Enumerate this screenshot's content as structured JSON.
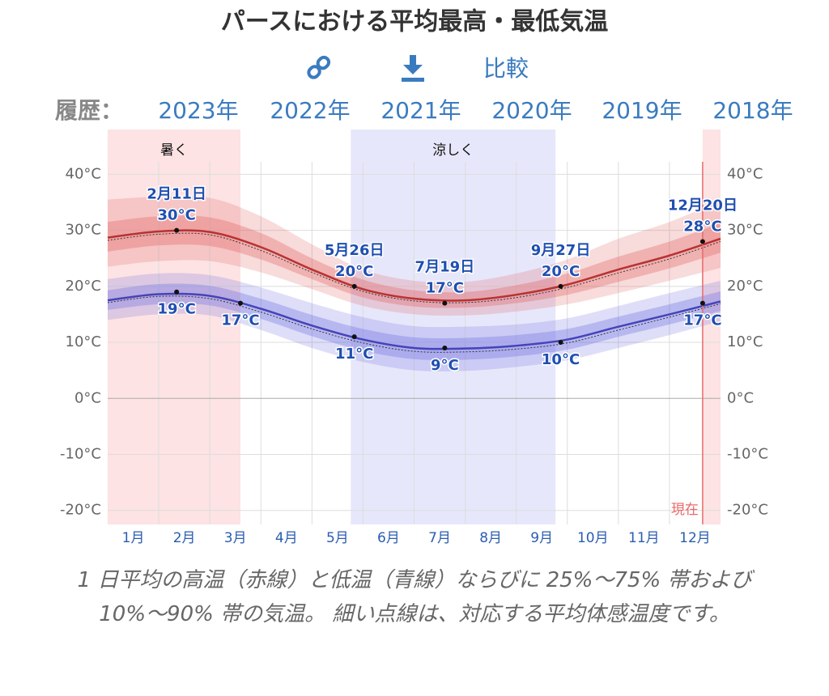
{
  "header": {
    "title": "パースにおける平均最高・最低気温",
    "compare": "比較",
    "history_label": "履歴：",
    "years": [
      "2023年",
      "2022年",
      "2021年",
      "2020年",
      "2019年",
      "2018年"
    ]
  },
  "chart_data": {
    "type": "line",
    "x": [
      0,
      1,
      2,
      3,
      4,
      5,
      6,
      7,
      8,
      9,
      10,
      11,
      12
    ],
    "xlim": [
      0,
      12
    ],
    "xticks": [
      {
        "value": 0.5,
        "label": "1月"
      },
      {
        "value": 1.5,
        "label": "2月"
      },
      {
        "value": 2.5,
        "label": "3月"
      },
      {
        "value": 3.5,
        "label": "4月"
      },
      {
        "value": 4.5,
        "label": "5月"
      },
      {
        "value": 5.5,
        "label": "6月"
      },
      {
        "value": 6.5,
        "label": "7月"
      },
      {
        "value": 7.5,
        "label": "8月"
      },
      {
        "value": 8.5,
        "label": "9月"
      },
      {
        "value": 9.5,
        "label": "10月"
      },
      {
        "value": 10.5,
        "label": "11月"
      },
      {
        "value": 11.5,
        "label": "12月"
      }
    ],
    "xgrid": [
      1,
      2,
      3,
      4,
      5,
      6,
      7,
      8,
      9,
      10,
      11
    ],
    "ylim": [
      -22.5,
      48
    ],
    "yticks": [
      {
        "value": -20,
        "label": "-20°C"
      },
      {
        "value": -10,
        "label": "-10°C"
      },
      {
        "value": 0,
        "label": "0°C"
      },
      {
        "value": 10,
        "label": "10°C"
      },
      {
        "value": 20,
        "label": "20°C"
      },
      {
        "value": 30,
        "label": "30°C"
      },
      {
        "value": 40,
        "label": "40°C"
      }
    ],
    "grid": true,
    "series": [
      {
        "color": "#b83232",
        "band_color": "#e05a5a",
        "values": [
          28.7,
          29.8,
          29.7,
          27,
          23,
          19.5,
          17.8,
          17.5,
          18.5,
          20.3,
          23,
          25.5,
          28.5
        ],
        "apparent": [
          28.2,
          29.3,
          29.2,
          26.4,
          22.5,
          19.1,
          17.4,
          17.1,
          18.0,
          19.8,
          22.4,
          24.9,
          28.0
        ],
        "p10": [
          23.5,
          24.5,
          24.5,
          22.5,
          19.5,
          16.5,
          15,
          14.8,
          15.5,
          16.8,
          18.8,
          21,
          23.3
        ],
        "p25": [
          26.2,
          27.3,
          27.2,
          24.8,
          21.3,
          18,
          16.4,
          16.2,
          17,
          18.5,
          20.8,
          23.2,
          26
        ],
        "p75": [
          31.5,
          32.5,
          32.3,
          29.5,
          25,
          21.2,
          19.3,
          19,
          20.2,
          22.3,
          25.3,
          28,
          31.3
        ],
        "p90": [
          35.5,
          36,
          35.8,
          32.5,
          27.5,
          23,
          21,
          20.8,
          22.3,
          24.8,
          28.5,
          31.5,
          35.3
        ]
      },
      {
        "color": "#4444b8",
        "band_color": "#6a6ae0",
        "values": [
          17.5,
          18.6,
          18.3,
          16,
          13,
          10.5,
          9,
          8.9,
          9.4,
          10.5,
          12.8,
          15,
          17.3
        ],
        "apparent": [
          17.1,
          18.2,
          17.8,
          15.4,
          12.4,
          9.9,
          8.4,
          8.3,
          8.8,
          9.9,
          12.2,
          14.5,
          16.9
        ],
        "p10": [
          14,
          15,
          14.8,
          12.2,
          9,
          6.5,
          5,
          4.9,
          5.6,
          6.8,
          9,
          11.3,
          13.8
        ],
        "p25": [
          15.8,
          16.8,
          16.6,
          14.2,
          11.1,
          8.5,
          7,
          6.9,
          7.5,
          8.7,
          11,
          13.2,
          15.6
        ],
        "p75": [
          19.3,
          20.4,
          20.1,
          17.8,
          14.9,
          12.4,
          10.9,
          10.8,
          11.3,
          12.4,
          14.6,
          16.8,
          19.1
        ],
        "p90": [
          21.3,
          22.3,
          22,
          19.8,
          17,
          14.5,
          12.9,
          12.8,
          13.2,
          14.3,
          16.5,
          18.8,
          21
        ]
      }
    ],
    "regions": [
      {
        "label": "暑く",
        "from": 0,
        "to": 2.6,
        "color": "#fde3e3"
      },
      {
        "label": "涼しく",
        "from": 4.76,
        "to": 8.77,
        "color": "#e7e7fb"
      },
      {
        "from": 11.65,
        "to": 12,
        "color": "#fde3e3"
      }
    ],
    "current": {
      "label": "現在",
      "x": 11.65,
      "color": "#e86a6a"
    },
    "annotations": [
      {
        "date": "2月11日",
        "x": 1.35,
        "value": 30,
        "value_label": "30°C",
        "series": 0
      },
      {
        "date": "5月26日",
        "x": 4.83,
        "value": 20,
        "value_label": "20°C",
        "series": 0
      },
      {
        "date": "7月19日",
        "x": 6.6,
        "value": 17,
        "value_label": "17°C",
        "series": 0
      },
      {
        "date": "9月27日",
        "x": 8.87,
        "value": 20,
        "value_label": "20°C",
        "series": 0
      },
      {
        "date": "12月20日",
        "x": 11.65,
        "value": 28,
        "value_label": "28°C",
        "series": 0
      },
      {
        "x": 1.35,
        "value": 19,
        "value_label": "19°C",
        "series": 1
      },
      {
        "x": 2.6,
        "value": 17,
        "value_label": "17°C",
        "series": 1
      },
      {
        "x": 4.83,
        "value": 11,
        "value_label": "11°C",
        "series": 1
      },
      {
        "x": 6.6,
        "value": 9,
        "value_label": "9°C",
        "series": 1
      },
      {
        "x": 8.87,
        "value": 10,
        "value_label": "10°C",
        "series": 1
      },
      {
        "x": 11.65,
        "value": 17,
        "value_label": "17°C",
        "series": 1
      }
    ],
    "caption": "1 日平均の高温（赤線）と低温（青線）ならびに 25%〜75% 帯および 10%〜90% 帯の気温。 細い点線は、対応する平均体感温度です。"
  }
}
